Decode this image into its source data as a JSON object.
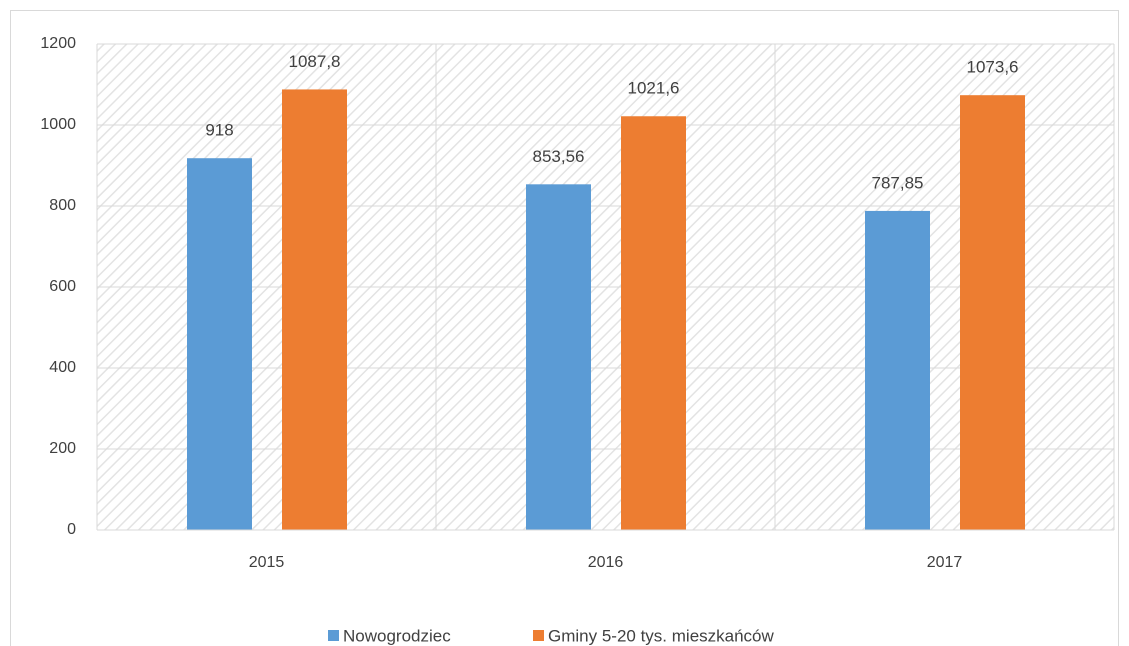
{
  "chart_data": {
    "type": "bar",
    "categories": [
      "2015",
      "2016",
      "2017"
    ],
    "series": [
      {
        "name": "Nowogrodziec",
        "color": "#5b9bd5",
        "values": [
          918,
          853.56,
          787.85
        ],
        "value_labels": [
          "918",
          "853,56",
          "787,85"
        ]
      },
      {
        "name": "Gminy 5-20 tys. mieszkańców",
        "color": "#ed7d31",
        "values": [
          1087.8,
          1021.6,
          1073.6
        ],
        "value_labels": [
          "1087,8",
          "1021,6",
          "1073,6"
        ]
      }
    ],
    "ylim": [
      0,
      1200
    ],
    "yticks": [
      0,
      200,
      400,
      600,
      800,
      1000,
      1200
    ],
    "grid": true,
    "legend": "bottom"
  }
}
